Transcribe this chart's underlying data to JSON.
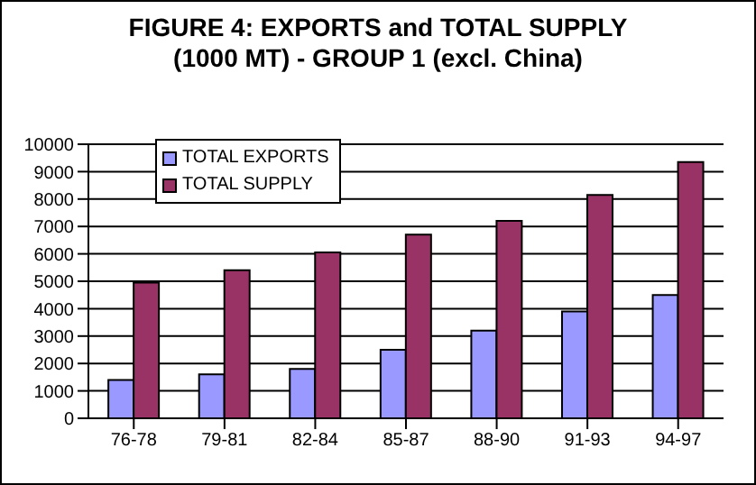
{
  "chart_data": {
    "type": "bar",
    "title": "FIGURE 4: EXPORTS and TOTAL SUPPLY",
    "subtitle": "(1000 MT) - GROUP 1 (excl. China)",
    "categories": [
      "76-78",
      "79-81",
      "82-84",
      "85-87",
      "88-90",
      "91-93",
      "94-97"
    ],
    "series": [
      {
        "name": "TOTAL EXPORTS",
        "color": "#9999ff",
        "values": [
          1400,
          1600,
          1800,
          2500,
          3200,
          3900,
          4500
        ]
      },
      {
        "name": "TOTAL SUPPLY",
        "color": "#993366",
        "values": [
          4950,
          5400,
          6050,
          6700,
          7200,
          8150,
          9350
        ]
      }
    ],
    "ylim": [
      0,
      10000
    ],
    "yticks": [
      0,
      1000,
      2000,
      3000,
      4000,
      5000,
      6000,
      7000,
      8000,
      9000,
      10000
    ],
    "grid": "y",
    "legend": "top left"
  }
}
